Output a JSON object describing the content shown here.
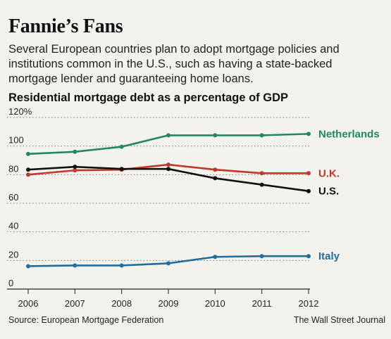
{
  "header": {
    "title": "Fannie’s Fans",
    "subtitle": "Several European countries plan to adopt mortgage policies and institutions common in the U.S., such as having a state-backed mortgage lender and guaranteeing home loans."
  },
  "footer": {
    "source": "Source: European Mortgage Federation",
    "credit": "The Wall Street Journal"
  },
  "chart_data": {
    "type": "line",
    "title": "Residential mortgage debt as a percentage of GDP",
    "x": [
      "2006",
      "2007",
      "2008",
      "2009",
      "2010",
      "2011",
      "2012"
    ],
    "ylim": [
      0,
      120
    ],
    "yticks": [
      "0",
      "20",
      "40",
      "60",
      "80",
      "100",
      "120%"
    ],
    "grid": "horizontal dotted",
    "legend": "direct labels at right end of lines",
    "series": [
      {
        "name": "Netherlands",
        "color": "#1f8a5e",
        "values": [
          94.5,
          96,
          99.5,
          107.5,
          107.5,
          107.5,
          108.5
        ]
      },
      {
        "name": "U.K.",
        "color": "#c0392b",
        "values": [
          80,
          83,
          83.5,
          87,
          83.5,
          81,
          81
        ]
      },
      {
        "name": "U.S.",
        "color": "#111111",
        "values": [
          83.5,
          85.5,
          84,
          84,
          77.5,
          73,
          68.5
        ]
      },
      {
        "name": "Italy",
        "color": "#1f6e9e",
        "values": [
          16,
          16.5,
          16.5,
          18,
          22.5,
          23,
          23
        ]
      }
    ]
  }
}
